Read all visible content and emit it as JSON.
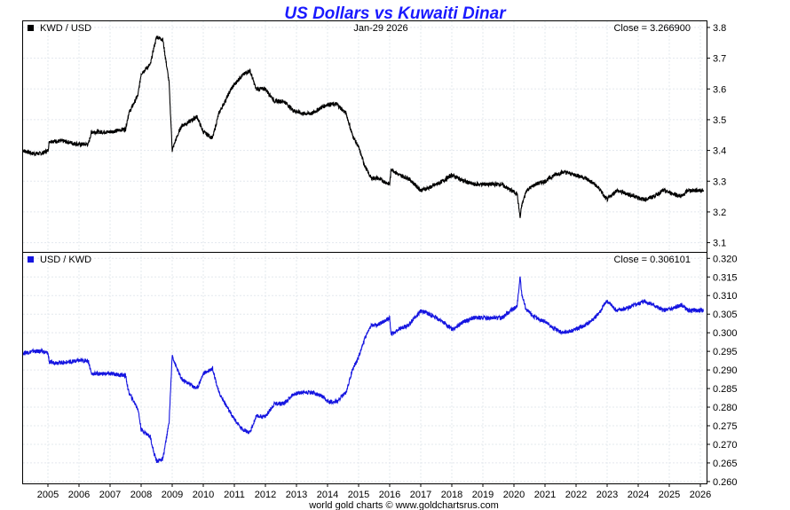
{
  "title": "US Dollars vs Kuwaiti Dinar",
  "date_label": "Jan-29  2026",
  "footer": "world gold charts © www.goldchartsrus.com",
  "colors": {
    "title": "#1a1aff",
    "upper": "#000000",
    "lower": "#1515e0",
    "grid": "#e3e8ee"
  },
  "chart_data": [
    {
      "type": "line",
      "panel": "upper",
      "legend": "KWD / USD",
      "close_label": "Close = 3.266900",
      "ylim": [
        3.07,
        3.82
      ],
      "yticks": [
        "3.1",
        "3.2",
        "3.3",
        "3.4",
        "3.5",
        "3.6",
        "3.7",
        "3.8"
      ],
      "xlim": [
        2004.2,
        2026.2
      ],
      "xticks": [
        "2005",
        "2006",
        "2007",
        "2008",
        "2009",
        "2010",
        "2011",
        "2012",
        "2013",
        "2014",
        "2015",
        "2016",
        "2017",
        "2018",
        "2019",
        "2020",
        "2021",
        "2022",
        "2023",
        "2024",
        "2025",
        "2026"
      ],
      "x": [
        2004.2,
        2004.5,
        2004.8,
        2005.0,
        2005.05,
        2005.5,
        2006.0,
        2006.3,
        2006.4,
        2007.0,
        2007.5,
        2007.6,
        2007.9,
        2008.0,
        2008.3,
        2008.4,
        2008.5,
        2008.7,
        2008.9,
        2009.0,
        2009.1,
        2009.3,
        2009.5,
        2009.8,
        2010.0,
        2010.3,
        2010.5,
        2010.7,
        2010.9,
        2011.2,
        2011.5,
        2011.7,
        2012.0,
        2012.3,
        2012.6,
        2012.9,
        2013.2,
        2013.5,
        2013.8,
        2014.0,
        2014.3,
        2014.6,
        2014.8,
        2015.0,
        2015.2,
        2015.4,
        2015.6,
        2016.0,
        2016.05,
        2016.3,
        2016.6,
        2016.9,
        2017.0,
        2017.3,
        2017.7,
        2018.0,
        2018.2,
        2018.4,
        2018.7,
        2019.0,
        2019.3,
        2019.6,
        2019.9,
        2020.1,
        2020.2,
        2020.25,
        2020.4,
        2020.7,
        2021.0,
        2021.3,
        2021.6,
        2022.0,
        2022.3,
        2022.6,
        2022.8,
        2022.9,
        2023.0,
        2023.3,
        2023.6,
        2023.9,
        2024.2,
        2024.5,
        2024.8,
        2025.1,
        2025.4,
        2025.6,
        2025.9,
        2026.1
      ],
      "y": [
        3.4,
        3.39,
        3.39,
        3.4,
        3.43,
        3.43,
        3.42,
        3.42,
        3.46,
        3.46,
        3.47,
        3.52,
        3.58,
        3.65,
        3.68,
        3.73,
        3.77,
        3.76,
        3.62,
        3.4,
        3.43,
        3.48,
        3.49,
        3.51,
        3.46,
        3.44,
        3.52,
        3.56,
        3.6,
        3.64,
        3.66,
        3.6,
        3.6,
        3.56,
        3.56,
        3.53,
        3.52,
        3.52,
        3.54,
        3.55,
        3.55,
        3.52,
        3.45,
        3.41,
        3.35,
        3.31,
        3.31,
        3.29,
        3.34,
        3.32,
        3.31,
        3.28,
        3.27,
        3.28,
        3.3,
        3.32,
        3.31,
        3.3,
        3.29,
        3.29,
        3.29,
        3.29,
        3.27,
        3.26,
        3.18,
        3.22,
        3.27,
        3.29,
        3.3,
        3.32,
        3.33,
        3.32,
        3.31,
        3.29,
        3.27,
        3.25,
        3.24,
        3.27,
        3.26,
        3.25,
        3.24,
        3.25,
        3.27,
        3.26,
        3.25,
        3.27,
        3.27,
        3.27
      ]
    },
    {
      "type": "line",
      "panel": "lower",
      "legend": "USD / KWD",
      "close_label": "Close = 0.306101",
      "ylim": [
        0.2595,
        0.3215
      ],
      "yticks": [
        "0.260",
        "0.265",
        "0.270",
        "0.275",
        "0.280",
        "0.285",
        "0.290",
        "0.295",
        "0.300",
        "0.305",
        "0.310",
        "0.315",
        "0.320"
      ],
      "xlim": [
        2004.2,
        2026.2
      ],
      "xticks": [
        "2005",
        "2006",
        "2007",
        "2008",
        "2009",
        "2010",
        "2011",
        "2012",
        "2013",
        "2014",
        "2015",
        "2016",
        "2017",
        "2018",
        "2019",
        "2020",
        "2021",
        "2022",
        "2023",
        "2024",
        "2025",
        "2026"
      ],
      "x": [
        2004.2,
        2004.5,
        2004.8,
        2005.0,
        2005.05,
        2005.5,
        2006.0,
        2006.3,
        2006.4,
        2007.0,
        2007.5,
        2007.6,
        2007.9,
        2008.0,
        2008.3,
        2008.4,
        2008.5,
        2008.7,
        2008.9,
        2009.0,
        2009.1,
        2009.3,
        2009.5,
        2009.8,
        2010.0,
        2010.3,
        2010.5,
        2010.7,
        2010.9,
        2011.2,
        2011.5,
        2011.7,
        2012.0,
        2012.3,
        2012.6,
        2012.9,
        2013.2,
        2013.5,
        2013.8,
        2014.0,
        2014.3,
        2014.6,
        2014.8,
        2015.0,
        2015.2,
        2015.4,
        2015.6,
        2016.0,
        2016.05,
        2016.3,
        2016.6,
        2016.9,
        2017.0,
        2017.3,
        2017.7,
        2018.0,
        2018.2,
        2018.4,
        2018.7,
        2019.0,
        2019.3,
        2019.6,
        2019.9,
        2020.1,
        2020.2,
        2020.25,
        2020.4,
        2020.7,
        2021.0,
        2021.3,
        2021.6,
        2022.0,
        2022.3,
        2022.6,
        2022.8,
        2022.9,
        2023.0,
        2023.3,
        2023.6,
        2023.9,
        2024.2,
        2024.5,
        2024.8,
        2025.1,
        2025.4,
        2025.6,
        2025.9,
        2026.1
      ],
      "y": [
        0.2945,
        0.295,
        0.295,
        0.2945,
        0.292,
        0.292,
        0.2925,
        0.2925,
        0.289,
        0.289,
        0.2885,
        0.284,
        0.2795,
        0.274,
        0.272,
        0.268,
        0.2655,
        0.266,
        0.276,
        0.294,
        0.2915,
        0.2875,
        0.2865,
        0.285,
        0.289,
        0.2905,
        0.284,
        0.281,
        0.278,
        0.2745,
        0.273,
        0.2775,
        0.2775,
        0.281,
        0.281,
        0.2835,
        0.284,
        0.284,
        0.283,
        0.2815,
        0.2815,
        0.284,
        0.29,
        0.2935,
        0.2985,
        0.302,
        0.302,
        0.304,
        0.2995,
        0.301,
        0.302,
        0.305,
        0.306,
        0.305,
        0.303,
        0.301,
        0.302,
        0.303,
        0.304,
        0.304,
        0.304,
        0.304,
        0.306,
        0.307,
        0.315,
        0.3105,
        0.306,
        0.304,
        0.303,
        0.301,
        0.3,
        0.301,
        0.302,
        0.304,
        0.306,
        0.3075,
        0.3085,
        0.306,
        0.3065,
        0.3075,
        0.3085,
        0.3075,
        0.306,
        0.3065,
        0.3075,
        0.306,
        0.306,
        0.306
      ]
    }
  ]
}
